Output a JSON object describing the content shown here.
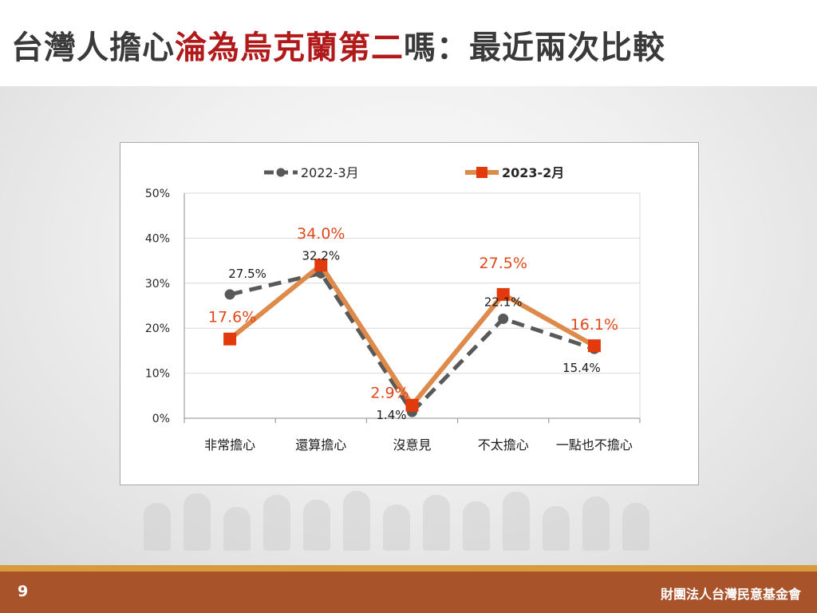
{
  "slide": {
    "title_part1": "台灣人擔心",
    "title_highlight": "淪為烏克蘭第二",
    "title_part2": "嗎：最近兩次比較",
    "page_number": "9",
    "organization": "財團法人台灣民意基金會"
  },
  "colors": {
    "title_text": "#3a3a3a",
    "title_highlight": "#b01a1a",
    "series_2022": "#595959",
    "series_2023_line": "#dd8a4a",
    "series_2023_marker": "#e23a0c",
    "label_2023": "#e0481b",
    "footer": "#a9532b",
    "footer_stripe": "#d99a3e"
  },
  "chart_data": {
    "type": "line",
    "categories": [
      "非常擔心",
      "還算擔心",
      "沒意見",
      "不太擔心",
      "一點也不擔心"
    ],
    "ylim": [
      0,
      50
    ],
    "yticks": [
      "0%",
      "10%",
      "20%",
      "30%",
      "40%",
      "50%"
    ],
    "grid": true,
    "legend_position": "top",
    "series": [
      {
        "name": "2022-3月",
        "values": [
          27.5,
          32.2,
          1.4,
          22.1,
          15.4
        ],
        "labels": [
          "27.5%",
          "32.2%",
          "1.4%",
          "22.1%",
          "15.4%"
        ],
        "style": "dashed",
        "marker": "circle"
      },
      {
        "name": "2023-2月",
        "values": [
          17.6,
          34.0,
          2.9,
          27.5,
          16.1
        ],
        "labels": [
          "17.6%",
          "34.0%",
          "2.9%",
          "27.5%",
          "16.1%"
        ],
        "style": "solid",
        "marker": "square"
      }
    ]
  }
}
